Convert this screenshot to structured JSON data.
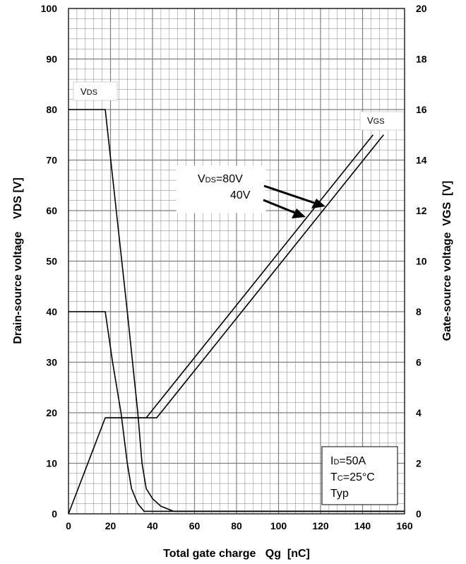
{
  "chart_data": {
    "type": "line",
    "xlabel": "Total gate charge   Qg  [nC]",
    "ylabel_left": "Drain-source voltage    VDS [V]",
    "ylabel_right": "Gate-source voltage  VGS  [V]",
    "xlim": [
      0,
      160
    ],
    "ylim_left": [
      0,
      100
    ],
    "ylim_right": [
      0,
      20
    ],
    "x_ticks": [
      "0",
      "20",
      "40",
      "60",
      "80",
      "100",
      "120",
      "140",
      "160"
    ],
    "y_left_ticks": [
      "0",
      "10",
      "20",
      "30",
      "40",
      "50",
      "60",
      "70",
      "80",
      "90",
      "100"
    ],
    "y_right_ticks": [
      "0",
      "2",
      "4",
      "6",
      "8",
      "10",
      "12",
      "14",
      "16",
      "18",
      "20"
    ],
    "grid": true,
    "series": [
      {
        "name": "VDS=80V",
        "axis": "left",
        "x": [
          0,
          17.5,
          28,
          33,
          35,
          37,
          40,
          44,
          50,
          160
        ],
        "y": [
          80,
          80,
          40,
          20,
          10,
          5,
          3,
          1.5,
          0.5,
          0.5
        ]
      },
      {
        "name": "VDS=40V",
        "axis": "left",
        "x": [
          0,
          17.5,
          21,
          25,
          28,
          30,
          33,
          36,
          160
        ],
        "y": [
          40,
          40,
          30,
          20,
          10,
          5,
          2,
          0.5,
          0.5
        ]
      },
      {
        "name": "VDS=80V",
        "axis": "right",
        "x": [
          0,
          17.5,
          42,
          150
        ],
        "y": [
          0,
          3.8,
          3.8,
          15
        ]
      },
      {
        "name": "VDS=40V",
        "axis": "right",
        "x": [
          17.5,
          37,
          145
        ],
        "y": [
          3.8,
          3.8,
          15
        ]
      }
    ],
    "annotations": {
      "vds_label": {
        "main": "V",
        "sub": "DS"
      },
      "vgs_label": {
        "main": "V",
        "sub": "GS"
      },
      "arrow_label_1": {
        "main": "V",
        "sub": "DS",
        "rest": "=80V"
      },
      "arrow_label_2": "40V",
      "conditions": {
        "line1": {
          "main": "I",
          "sub": "D",
          "rest": "=50A"
        },
        "line2": {
          "main": "T",
          "sub": "C",
          "rest": "=25°C"
        },
        "line3": "Typ"
      }
    },
    "colors": {
      "line": "#000000",
      "grid": "#808080",
      "background": "#ffffff"
    }
  }
}
